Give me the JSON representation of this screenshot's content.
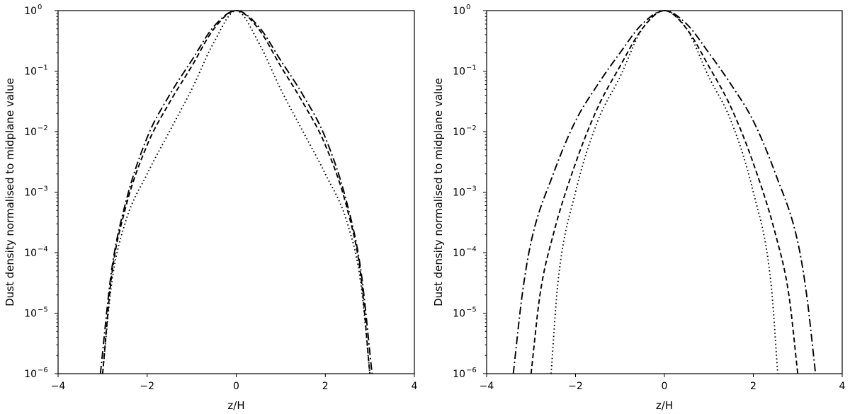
{
  "chart_data": [
    {
      "type": "line",
      "xlabel": "z/H",
      "ylabel": "Dust density normalised to midplane value",
      "xlim": [
        -4,
        4
      ],
      "ylim": [
        1e-06,
        1
      ],
      "yscale": "log",
      "x_ticks": [
        "−4",
        "−2",
        "0",
        "2",
        "4"
      ],
      "y_ticks": [
        {
          "base": "10",
          "exp": "−6"
        },
        {
          "base": "10",
          "exp": "−5"
        },
        {
          "base": "10",
          "exp": "−4"
        },
        {
          "base": "10",
          "exp": "−3"
        },
        {
          "base": "10",
          "exp": "−2"
        },
        {
          "base": "10",
          "exp": "−1"
        },
        {
          "base": "10",
          "exp": "0"
        }
      ],
      "series": [
        {
          "style": "dotted",
          "points": [
            [
              -3.0,
              1e-06
            ],
            [
              -2.8,
              3e-05
            ],
            [
              -2.5,
              0.0003
            ],
            [
              -2.0,
              0.002
            ],
            [
              -1.5,
              0.01
            ],
            [
              -1.0,
              0.05
            ],
            [
              -0.5,
              0.3
            ],
            [
              0.0,
              1.0
            ],
            [
              0.5,
              0.3
            ],
            [
              1.0,
              0.05
            ],
            [
              1.5,
              0.01
            ],
            [
              2.0,
              0.002
            ],
            [
              2.5,
              0.0003
            ],
            [
              2.8,
              3e-05
            ],
            [
              3.0,
              1e-06
            ]
          ]
        },
        {
          "style": "dashed",
          "points": [
            [
              -3.0,
              1e-06
            ],
            [
              -2.8,
              4e-05
            ],
            [
              -2.5,
              0.0005
            ],
            [
              -2.0,
              0.006
            ],
            [
              -1.5,
              0.03
            ],
            [
              -1.0,
              0.12
            ],
            [
              -0.5,
              0.5
            ],
            [
              0.0,
              1.0
            ],
            [
              0.5,
              0.5
            ],
            [
              1.0,
              0.12
            ],
            [
              1.5,
              0.03
            ],
            [
              2.0,
              0.006
            ],
            [
              2.5,
              0.0005
            ],
            [
              2.8,
              4e-05
            ],
            [
              3.0,
              1e-06
            ]
          ]
        },
        {
          "style": "dashdot",
          "points": [
            [
              -3.05,
              1e-06
            ],
            [
              -2.8,
              5e-05
            ],
            [
              -2.5,
              0.0006
            ],
            [
              -2.0,
              0.008
            ],
            [
              -1.5,
              0.04
            ],
            [
              -1.0,
              0.15
            ],
            [
              -0.5,
              0.55
            ],
            [
              0.0,
              1.0
            ],
            [
              0.5,
              0.55
            ],
            [
              1.0,
              0.15
            ],
            [
              1.5,
              0.04
            ],
            [
              2.0,
              0.008
            ],
            [
              2.5,
              0.0006
            ],
            [
              2.8,
              5e-05
            ],
            [
              3.05,
              1e-06
            ]
          ]
        }
      ]
    },
    {
      "type": "line",
      "xlabel": "z/H",
      "ylabel": "Dust density normalised to midplane value",
      "xlim": [
        -4,
        4
      ],
      "ylim": [
        1e-06,
        1
      ],
      "yscale": "log",
      "x_ticks": [
        "−4",
        "−2",
        "0",
        "2",
        "4"
      ],
      "y_ticks": [
        {
          "base": "10",
          "exp": "−6"
        },
        {
          "base": "10",
          "exp": "−5"
        },
        {
          "base": "10",
          "exp": "−4"
        },
        {
          "base": "10",
          "exp": "−3"
        },
        {
          "base": "10",
          "exp": "−2"
        },
        {
          "base": "10",
          "exp": "−1"
        },
        {
          "base": "10",
          "exp": "0"
        }
      ],
      "series": [
        {
          "style": "dotted",
          "points": [
            [
              -2.55,
              1e-06
            ],
            [
              -2.4,
              3e-05
            ],
            [
              -2.0,
              0.001
            ],
            [
              -1.5,
              0.015
            ],
            [
              -1.0,
              0.08
            ],
            [
              -0.5,
              0.5
            ],
            [
              0.0,
              1.0
            ],
            [
              0.5,
              0.5
            ],
            [
              1.0,
              0.08
            ],
            [
              1.5,
              0.015
            ],
            [
              2.0,
              0.001
            ],
            [
              2.4,
              3e-05
            ],
            [
              2.55,
              1e-06
            ]
          ]
        },
        {
          "style": "dashed",
          "points": [
            [
              -3.0,
              1e-06
            ],
            [
              -2.8,
              2e-05
            ],
            [
              -2.5,
              0.0002
            ],
            [
              -2.0,
              0.003
            ],
            [
              -1.5,
              0.025
            ],
            [
              -1.0,
              0.12
            ],
            [
              -0.5,
              0.5
            ],
            [
              0.0,
              1.0
            ],
            [
              0.5,
              0.5
            ],
            [
              1.0,
              0.12
            ],
            [
              1.5,
              0.025
            ],
            [
              2.0,
              0.003
            ],
            [
              2.5,
              0.0002
            ],
            [
              2.8,
              2e-05
            ],
            [
              3.0,
              1e-06
            ]
          ]
        },
        {
          "style": "dashdot",
          "points": [
            [
              -3.4,
              1e-06
            ],
            [
              -3.2,
              2e-05
            ],
            [
              -3.0,
              0.00015
            ],
            [
              -2.5,
              0.002
            ],
            [
              -2.0,
              0.015
            ],
            [
              -1.5,
              0.06
            ],
            [
              -1.0,
              0.2
            ],
            [
              -0.5,
              0.6
            ],
            [
              0.0,
              1.0
            ],
            [
              0.5,
              0.6
            ],
            [
              1.0,
              0.2
            ],
            [
              1.5,
              0.06
            ],
            [
              2.0,
              0.015
            ],
            [
              2.5,
              0.002
            ],
            [
              3.0,
              0.00015
            ],
            [
              3.2,
              2e-05
            ],
            [
              3.4,
              1e-06
            ]
          ]
        }
      ]
    }
  ]
}
